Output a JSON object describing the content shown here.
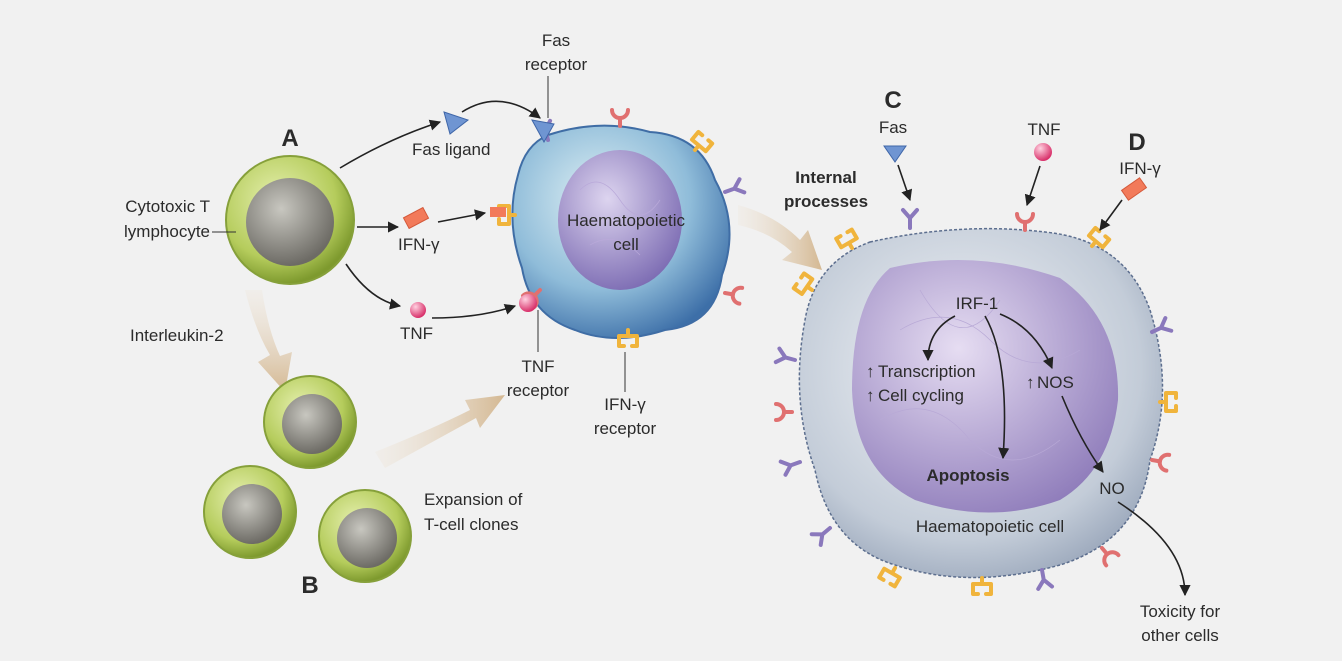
{
  "letters": {
    "a": "A",
    "b": "B",
    "c": "C",
    "d": "D"
  },
  "left": {
    "ctl_line1": "Cytotoxic T",
    "ctl_line2": "lymphocyte",
    "interleukin": "Interleukin-2",
    "expansion_line1": "Expansion of",
    "expansion_line2": "T-cell clones",
    "fas_ligand": "Fas ligand",
    "ifn": "IFN-γ",
    "tnf": "TNF"
  },
  "middle": {
    "fas_receptor_line1": "Fas",
    "fas_receptor_line2": "receptor",
    "cell_line1": "Haematopoietic",
    "cell_line2": "cell",
    "tnf_receptor_line1": "TNF",
    "tnf_receptor_line2": "receptor",
    "ifn_receptor_line1": "IFN-γ",
    "ifn_receptor_line2": "receptor"
  },
  "right": {
    "internal_line1": "Internal",
    "internal_line2": "processes",
    "fas": "Fas",
    "tnf": "TNF",
    "ifn": "IFN-γ",
    "irf1": "IRF-1",
    "transcription": "Transcription",
    "cell_cycling": "Cell cycling",
    "nos": "NOS",
    "up_arrow": "↑",
    "apoptosis": "Apoptosis",
    "no": "NO",
    "cell_label": "Haematopoietic cell",
    "toxicity_line1": "Toxicity for",
    "toxicity_line2": "other cells"
  },
  "colors": {
    "tcell_outer": "#b5cc5c",
    "tcell_nucleus": "#8e8c85",
    "haem_cell": "#86b4d6",
    "haem_nucleus": "#9a88c6",
    "big_cell": "#bcc6d4",
    "big_nucleus": "#a99cc9",
    "fas_receptor": "#9080c0",
    "tnf_receptor": "#e07a7a",
    "ifn_receptor": "#f0b43c",
    "tnf_ball": "#e8457c",
    "ifn_rect": "#f27a5a",
    "fas_triangle": "#6f95d2",
    "flow_arrow": "#d9c4a6"
  }
}
